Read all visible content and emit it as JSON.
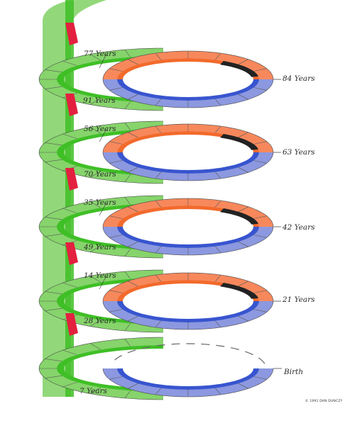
{
  "colors": {
    "green": "#86d46b",
    "green_dark": "#3fbf26",
    "red": "#e3203f",
    "orange": "#f7885c",
    "orange_dark": "#f26a2c",
    "blue": "#8c98df",
    "blue_dark": "#3855cf",
    "black": "#222222",
    "seg_line": "#5a5a5a"
  },
  "labels": {
    "y77": "77 Years",
    "y84": "84 Years",
    "y91": "91 Years",
    "y56": "56 Years",
    "y63": "63 Years",
    "y70": "70 Years",
    "y35": "35 Years",
    "y42": "42 Years",
    "y49": "49 Years",
    "y14": "14 Years",
    "y21": "21 Years",
    "y28": "28 Years",
    "birth": "Birth",
    "y7": "7 Years"
  },
  "credit": "© 1991 DAN DUNCZY"
}
